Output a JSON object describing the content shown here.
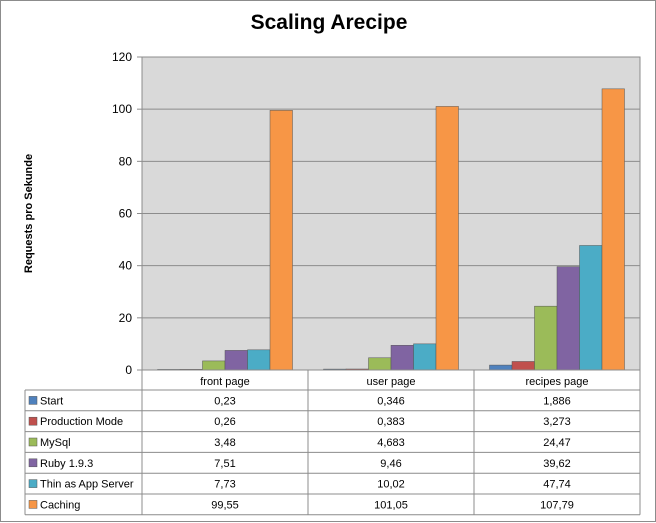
{
  "chart_data": {
    "type": "bar",
    "title": "Scaling Arecipe",
    "ylabel": "Requests pro Sekunde",
    "ylim": [
      0,
      120
    ],
    "yticks": [
      0,
      20,
      40,
      60,
      80,
      100,
      120
    ],
    "grid": true,
    "legend": "data table below",
    "categories": [
      "front page",
      "user page",
      "recipes page"
    ],
    "series": [
      {
        "name": "Start",
        "color": "#4f81bd",
        "values": [
          0.23,
          0.346,
          1.886
        ],
        "labels": [
          "0,23",
          "0,346",
          "1,886"
        ]
      },
      {
        "name": "Production Mode",
        "color": "#c0504d",
        "values": [
          0.26,
          0.383,
          3.273
        ],
        "labels": [
          "0,26",
          "0,383",
          "3,273"
        ]
      },
      {
        "name": "MySql",
        "color": "#9bbb59",
        "values": [
          3.48,
          4.683,
          24.47
        ],
        "labels": [
          "3,48",
          "4,683",
          "24,47"
        ]
      },
      {
        "name": "Ruby 1.9.3",
        "color": "#8064a2",
        "values": [
          7.51,
          9.46,
          39.62
        ],
        "labels": [
          "7,51",
          "9,46",
          "39,62"
        ]
      },
      {
        "name": "Thin as App Server",
        "color": "#4bacc6",
        "values": [
          7.73,
          10.02,
          47.74
        ],
        "labels": [
          "7,73",
          "10,02",
          "47,74"
        ]
      },
      {
        "name": "Caching",
        "color": "#f79646",
        "values": [
          99.55,
          101.05,
          107.79
        ],
        "labels": [
          "99,55",
          "101,05",
          "107,79"
        ]
      }
    ]
  }
}
